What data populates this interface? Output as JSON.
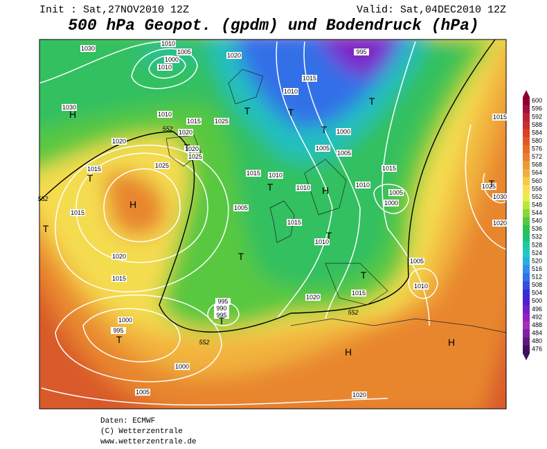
{
  "header": {
    "init": "Init : Sat,27NOV2010 12Z",
    "valid": "Valid: Sat,04DEC2010 12Z",
    "title": "500 hPa Geopot. (gpdm) und Bodendruck (hPa)"
  },
  "map": {
    "isobar_labels": [
      "1030",
      "1010",
      "1005",
      "1000",
      "1010",
      "1020",
      "1030",
      "1010",
      "1015",
      "1025",
      "1020",
      "1020",
      "1020",
      "1025",
      "1015",
      "1025",
      "1015",
      "1015",
      "1010",
      "1010",
      "1005",
      "1005",
      "1010",
      "1015",
      "1005",
      "1000",
      "1025",
      "1030",
      "1005",
      "1015",
      "1010",
      "1020",
      "1015",
      "1005",
      "1010",
      "1020",
      "1015",
      "995",
      "990",
      "995",
      "1000",
      "995",
      "1000",
      "1005",
      "1020",
      "1010",
      "1015",
      "1000",
      "1015",
      "1020",
      "995"
    ],
    "geopotential_labels": [
      "552",
      "552",
      "552",
      "552"
    ],
    "pressure_centers": [
      "H",
      "H",
      "H",
      "H",
      "H",
      "T",
      "T",
      "T",
      "T",
      "T",
      "T",
      "T",
      "T",
      "T",
      "T",
      "T",
      "T",
      "T",
      "T"
    ]
  },
  "colorbar": {
    "labels": [
      600,
      596,
      592,
      588,
      584,
      580,
      576,
      572,
      568,
      564,
      560,
      556,
      552,
      548,
      544,
      540,
      536,
      532,
      528,
      524,
      520,
      516,
      512,
      508,
      504,
      500,
      496,
      492,
      488,
      484,
      480,
      476
    ],
    "colors": [
      "#8b0030",
      "#a0103a",
      "#b8203c",
      "#c83030",
      "#d84028",
      "#e05828",
      "#e86c28",
      "#e88030",
      "#f09838",
      "#f0b040",
      "#f8c848",
      "#f8e050",
      "#e8f048",
      "#b8e840",
      "#88d838",
      "#58c840",
      "#30c050",
      "#20c078",
      "#20c8a0",
      "#20c8c8",
      "#28b0e0",
      "#3090e8",
      "#3070e8",
      "#3050e0",
      "#3030d8",
      "#5020d0",
      "#7020c8",
      "#9020c0",
      "#a030b8",
      "#8020a0",
      "#601880",
      "#401060"
    ]
  },
  "footer": [
    "Daten: ECMWF",
    "(C) Wetterzentrale",
    "www.wetterzentrale.de"
  ]
}
